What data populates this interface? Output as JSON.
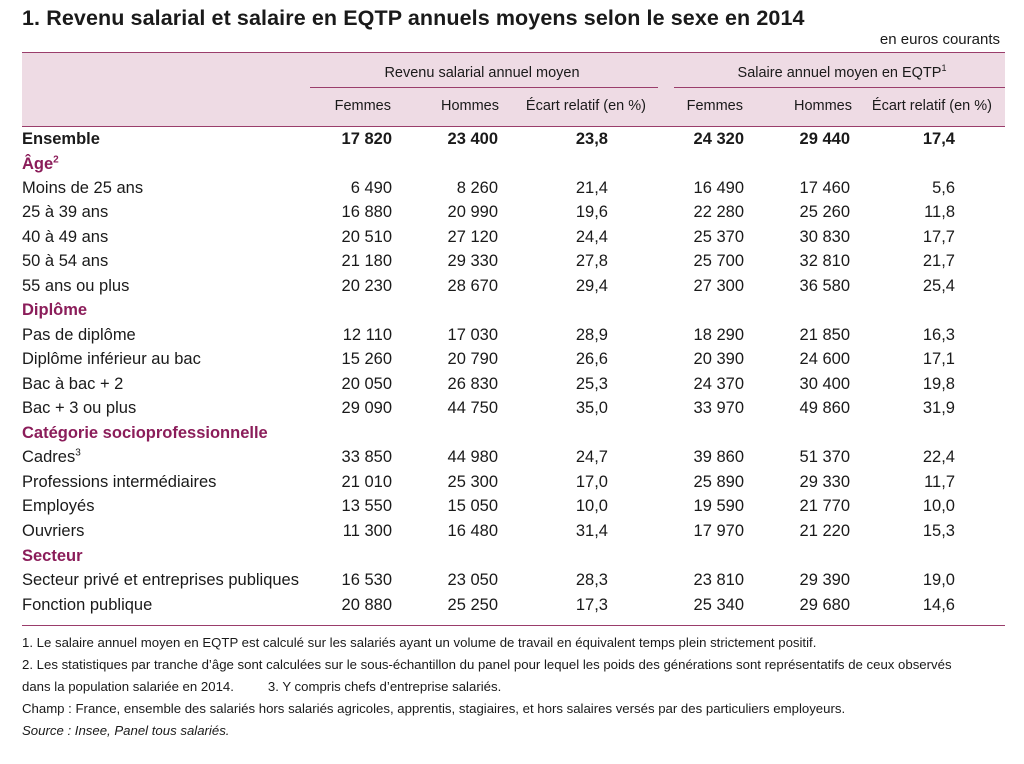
{
  "title": "1. Revenu salarial et salaire en EQTP annuels moyens selon le sexe en 2014",
  "unit": "en euros courants",
  "header": {
    "group1": "Revenu salarial annuel moyen",
    "group2": "Salaire annuel moyen en EQTP",
    "group2_sup": "1",
    "columns": [
      "Femmes",
      "Hommes",
      "Écart relatif (en %)",
      "Femmes",
      "Hommes",
      "Écart relatif (en %)"
    ]
  },
  "rows": [
    {
      "label": "Ensemble",
      "sup": "",
      "type": "total",
      "values": [
        "17 820",
        "23 400",
        "23,8",
        "24 320",
        "29 440",
        "17,4"
      ]
    },
    {
      "label": "Âge",
      "sup": "2",
      "type": "section",
      "values": []
    },
    {
      "label": "Moins de 25 ans",
      "sup": "",
      "type": "data",
      "values": [
        "6 490",
        "8 260",
        "21,4",
        "16 490",
        "17 460",
        "5,6"
      ]
    },
    {
      "label": "25 à 39 ans",
      "sup": "",
      "type": "data",
      "values": [
        "16 880",
        "20 990",
        "19,6",
        "22 280",
        "25 260",
        "11,8"
      ]
    },
    {
      "label": "40 à 49 ans",
      "sup": "",
      "type": "data",
      "values": [
        "20 510",
        "27 120",
        "24,4",
        "25 370",
        "30 830",
        "17,7"
      ]
    },
    {
      "label": "50 à 54 ans",
      "sup": "",
      "type": "data",
      "values": [
        "21 180",
        "29 330",
        "27,8",
        "25 700",
        "32 810",
        "21,7"
      ]
    },
    {
      "label": "55 ans ou plus",
      "sup": "",
      "type": "data",
      "values": [
        "20 230",
        "28 670",
        "29,4",
        "27 300",
        "36 580",
        "25,4"
      ]
    },
    {
      "label": "Diplôme",
      "sup": "",
      "type": "section",
      "values": []
    },
    {
      "label": "Pas de diplôme",
      "sup": "",
      "type": "data",
      "values": [
        "12 110",
        "17 030",
        "28,9",
        "18 290",
        "21 850",
        "16,3"
      ]
    },
    {
      "label": "Diplôme inférieur au bac",
      "sup": "",
      "type": "data",
      "values": [
        "15 260",
        "20 790",
        "26,6",
        "20 390",
        "24 600",
        "17,1"
      ]
    },
    {
      "label": "Bac à bac + 2",
      "sup": "",
      "type": "data",
      "values": [
        "20 050",
        "26 830",
        "25,3",
        "24 370",
        "30 400",
        "19,8"
      ]
    },
    {
      "label": "Bac + 3 ou plus",
      "sup": "",
      "type": "data",
      "values": [
        "29 090",
        "44 750",
        "35,0",
        "33 970",
        "49 860",
        "31,9"
      ]
    },
    {
      "label": "Catégorie socioprofessionnelle",
      "sup": "",
      "type": "section",
      "values": []
    },
    {
      "label": "Cadres",
      "sup": "3",
      "type": "data",
      "values": [
        "33 850",
        "44 980",
        "24,7",
        "39 860",
        "51 370",
        "22,4"
      ]
    },
    {
      "label": "Professions intermédiaires",
      "sup": "",
      "type": "data",
      "values": [
        "21 010",
        "25 300",
        "17,0",
        "25 890",
        "29 330",
        "11,7"
      ]
    },
    {
      "label": "Employés",
      "sup": "",
      "type": "data",
      "values": [
        "13 550",
        "15 050",
        "10,0",
        "19 590",
        "21 770",
        "10,0"
      ]
    },
    {
      "label": "Ouvriers",
      "sup": "",
      "type": "data",
      "values": [
        "11 300",
        "16 480",
        "31,4",
        "17 970",
        "21 220",
        "15,3"
      ]
    },
    {
      "label": "Secteur",
      "sup": "",
      "type": "section",
      "values": []
    },
    {
      "label": "Secteur privé et entreprises publiques",
      "sup": "",
      "type": "data",
      "values": [
        "16 530",
        "23 050",
        "28,3",
        "23 810",
        "29 390",
        "19,0"
      ]
    },
    {
      "label": "Fonction publique",
      "sup": "",
      "type": "data",
      "values": [
        "20 880",
        "25 250",
        "17,3",
        "25 340",
        "29 680",
        "14,6"
      ]
    }
  ],
  "notes": {
    "note1": "1. Le salaire annuel moyen en EQTP est calculé sur les salariés ayant un volume de travail en équivalent temps plein strictement positif.",
    "note2a": "2. Les statistiques par tranche d’âge sont calculées sur le sous-échantillon du panel pour lequel les poids des générations sont représentatifs de ceux observés",
    "note2b": "dans la population salariée en 2014.",
    "note3": "3. Y compris chefs d’entreprise salariés.",
    "champ": "Champ : France, ensemble des salariés hors salariés agricoles, apprentis, stagiaires, et hors salaires versés par des particuliers employeurs.",
    "source": "Source : Insee, Panel tous salariés."
  },
  "colors": {
    "header_bg": "#eedbe4",
    "rule": "#9a3d6b",
    "section": "#8b1d5a"
  }
}
